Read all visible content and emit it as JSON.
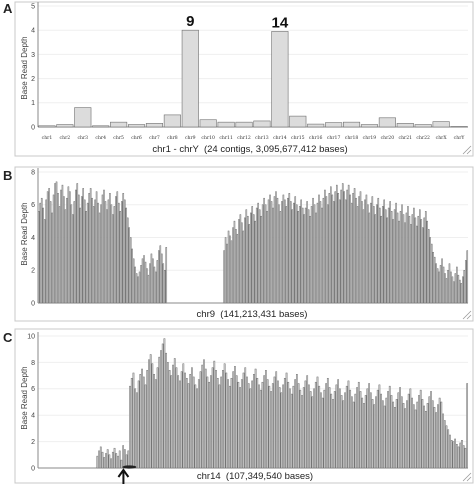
{
  "panels": [
    {
      "letter": "A"
    },
    {
      "letter": "B"
    },
    {
      "letter": "C"
    }
  ],
  "chart_data": [
    {
      "type": "bar",
      "ylabel": "Base Read Depth",
      "xlabel": "chr1 - chrY  (24 contigs, 3,095,677,412 bases)",
      "ylim": [
        0,
        5
      ],
      "yticks": [
        0,
        1,
        2,
        3,
        4,
        5
      ],
      "grid": true,
      "categories": [
        "chr1",
        "chr2",
        "chr3",
        "chr4",
        "chr5",
        "chr6",
        "chr7",
        "chr8",
        "chr9",
        "chr10",
        "chr11",
        "chr12",
        "chr13",
        "chr14",
        "chr15",
        "chr16",
        "chr17",
        "chr18",
        "chr19",
        "chr20",
        "chr21",
        "chr22",
        "chrX",
        "chrY"
      ],
      "values": [
        0.05,
        0.1,
        0.8,
        0.05,
        0.2,
        0.1,
        0.15,
        0.5,
        4.0,
        0.3,
        0.2,
        0.2,
        0.25,
        3.95,
        0.45,
        0.12,
        0.18,
        0.2,
        0.1,
        0.38,
        0.15,
        0.1,
        0.22,
        0.02
      ],
      "annotations": [
        {
          "category": "chr9",
          "text": "9"
        },
        {
          "category": "chr14",
          "text": "14"
        }
      ]
    },
    {
      "type": "bar",
      "ylabel": "Base Read Depth",
      "xlabel": "chr9  (141,213,431 bases)",
      "ylim": [
        0,
        8
      ],
      "yticks": [
        0,
        2,
        4,
        6,
        8
      ],
      "grid": true,
      "values": [
        5.6,
        6.1,
        6.4,
        5.8,
        5.1,
        6.3,
        6.8,
        7.0,
        6.2,
        5.5,
        6.6,
        7.3,
        7.4,
        6.7,
        5.9,
        6.9,
        7.2,
        6.5,
        5.7,
        6.4,
        7.1,
        6.8,
        6.0,
        5.4,
        6.2,
        6.9,
        7.3,
        6.6,
        5.8,
        6.5,
        7.0,
        6.3,
        5.6,
        6.1,
        6.7,
        7.0,
        6.4,
        5.9,
        6.3,
        6.8,
        6.1,
        5.5,
        6.0,
        6.6,
        6.9,
        6.2,
        5.7,
        6.3,
        6.7,
        6.0,
        5.4,
        5.9,
        6.5,
        6.8,
        6.1,
        5.6,
        6.2,
        6.7,
        6.3,
        5.8,
        5.2,
        4.6,
        4.0,
        3.3,
        2.7,
        2.2,
        1.8,
        1.6,
        1.9,
        2.3,
        2.7,
        2.9,
        2.5,
        2.1,
        1.7,
        2.4,
        3.0,
        2.7,
        2.2,
        1.9,
        2.6,
        3.2,
        3.5,
        3.0,
        2.4,
        2.0,
        3.4,
        0,
        0,
        0,
        0,
        0,
        0,
        0,
        0,
        0,
        0,
        0,
        0,
        0,
        0,
        0,
        0,
        0,
        0,
        0,
        0,
        0,
        0,
        0,
        0,
        0,
        0,
        0,
        0,
        0,
        0,
        0,
        0,
        0,
        0,
        0,
        0,
        0,
        0,
        3.2,
        4.0,
        3.6,
        4.4,
        4.1,
        3.8,
        4.6,
        5.0,
        4.5,
        4.2,
        5.1,
        5.4,
        4.9,
        4.4,
        5.2,
        5.7,
        5.3,
        4.8,
        5.5,
        5.9,
        5.4,
        5.0,
        5.8,
        6.1,
        5.7,
        5.3,
        6.0,
        6.4,
        6.0,
        5.6,
        6.3,
        6.6,
        6.2,
        5.8,
        6.5,
        6.8,
        6.4,
        6.0,
        5.6,
        6.2,
        6.6,
        6.3,
        5.9,
        6.4,
        6.7,
        6.2,
        5.7,
        6.1,
        6.5,
        6.0,
        5.6,
        5.9,
        6.3,
        5.8,
        5.4,
        5.8,
        6.2,
        5.7,
        5.3,
        5.9,
        6.4,
        6.0,
        5.5,
        6.1,
        6.6,
        6.2,
        5.8,
        6.4,
        6.9,
        6.5,
        6.0,
        6.7,
        7.1,
        6.6,
        6.2,
        6.8,
        7.2,
        6.7,
        6.3,
        6.9,
        7.3,
        6.8,
        6.3,
        6.9,
        7.2,
        6.6,
        6.1,
        6.7,
        7.0,
        6.4,
        5.9,
        6.5,
        6.8,
        6.2,
        5.7,
        6.3,
        6.6,
        6.0,
        5.5,
        6.1,
        6.5,
        5.9,
        5.4,
        6.0,
        6.4,
        5.8,
        5.3,
        5.9,
        6.3,
        5.7,
        5.2,
        5.8,
        6.2,
        5.6,
        5.1,
        5.7,
        6.1,
        5.5,
        5.0,
        5.6,
        6.0,
        5.4,
        4.9,
        5.5,
        5.9,
        5.3,
        4.8,
        5.4,
        5.8,
        5.2,
        4.7,
        5.3,
        5.7,
        5.1,
        4.6,
        5.2,
        5.6,
        5.0,
        4.5,
        4.0,
        3.6,
        3.1,
        2.8,
        2.4,
        2.1,
        1.9,
        2.3,
        2.7,
        2.2,
        1.8,
        1.5,
        2.0,
        2.4,
        1.9,
        1.6,
        1.3,
        1.8,
        2.2,
        1.7,
        1.4,
        1.2,
        1.6,
        2.0,
        2.6,
        3.2
      ],
      "gap_label": ""
    },
    {
      "type": "bar",
      "ylabel": "Base Read Depth",
      "xlabel": "chr14  (107,349,540 bases)",
      "ylim": [
        0,
        10
      ],
      "yticks": [
        0,
        2,
        4,
        6,
        8,
        10
      ],
      "grid": true,
      "arrow_at_bar": 48,
      "values": [
        0,
        0,
        0,
        0,
        0,
        0,
        0,
        0,
        0,
        0,
        0,
        0,
        0,
        0,
        0,
        0,
        0,
        0,
        0,
        0,
        0,
        0,
        0,
        0,
        0,
        0,
        0,
        0,
        0,
        0,
        0,
        0,
        0,
        0,
        0.9,
        1.3,
        1.6,
        1.2,
        0.8,
        1.1,
        1.4,
        1.0,
        0.7,
        1.2,
        1.5,
        1.1,
        0.9,
        1.3,
        0.6,
        1.7,
        1.4,
        1.0,
        1.3,
        6.2,
        6.8,
        7.2,
        6.0,
        5.7,
        6.6,
        7.1,
        7.5,
        6.9,
        6.3,
        7.4,
        8.2,
        8.6,
        7.9,
        7.1,
        6.7,
        7.6,
        8.4,
        8.9,
        9.4,
        9.8,
        8.7,
        8.0,
        7.4,
        7.0,
        7.8,
        8.3,
        7.6,
        7.0,
        6.6,
        7.3,
        7.9,
        7.2,
        6.8,
        6.4,
        7.1,
        7.6,
        6.9,
        6.3,
        6.0,
        6.7,
        7.3,
        7.8,
        8.2,
        7.5,
        6.9,
        6.5,
        7.0,
        7.6,
        8.1,
        7.4,
        6.8,
        6.3,
        6.9,
        7.4,
        7.9,
        7.2,
        6.7,
        6.2,
        6.8,
        7.3,
        7.7,
        7.0,
        6.5,
        6.1,
        6.7,
        7.2,
        7.6,
        6.9,
        6.4,
        6.0,
        6.6,
        7.1,
        7.5,
        6.8,
        6.3,
        5.9,
        6.5,
        7.0,
        7.4,
        6.7,
        6.2,
        5.8,
        6.4,
        6.9,
        7.3,
        6.6,
        6.1,
        5.7,
        6.3,
        6.8,
        7.2,
        6.5,
        6.0,
        5.6,
        6.2,
        6.7,
        7.1,
        6.4,
        5.9,
        5.5,
        6.1,
        6.6,
        7.0,
        6.3,
        5.8,
        5.4,
        6.0,
        6.5,
        6.9,
        6.2,
        5.7,
        5.3,
        5.9,
        6.4,
        6.8,
        6.1,
        5.6,
        5.2,
        5.8,
        6.3,
        6.7,
        6.0,
        5.5,
        5.1,
        5.7,
        6.2,
        6.6,
        5.9,
        5.4,
        5.0,
        5.6,
        6.1,
        6.5,
        5.8,
        5.3,
        4.9,
        5.5,
        6.0,
        6.4,
        5.7,
        5.2,
        4.8,
        5.4,
        5.9,
        6.3,
        5.6,
        5.1,
        4.7,
        5.3,
        5.8,
        6.2,
        5.5,
        5.0,
        4.6,
        5.2,
        5.7,
        6.1,
        5.4,
        4.9,
        4.5,
        5.1,
        5.6,
        6.0,
        5.3,
        4.8,
        4.4,
        5.0,
        5.5,
        5.9,
        5.2,
        4.7,
        4.3,
        4.9,
        5.4,
        5.8,
        5.1,
        4.6,
        4.2,
        4.8,
        5.3,
        5.0,
        4.1,
        3.6,
        3.2,
        2.9,
        2.5,
        2.1,
        2.0,
        2.2,
        1.8,
        1.6,
        1.9,
        2.1,
        1.7,
        1.5,
        6.4
      ]
    }
  ]
}
